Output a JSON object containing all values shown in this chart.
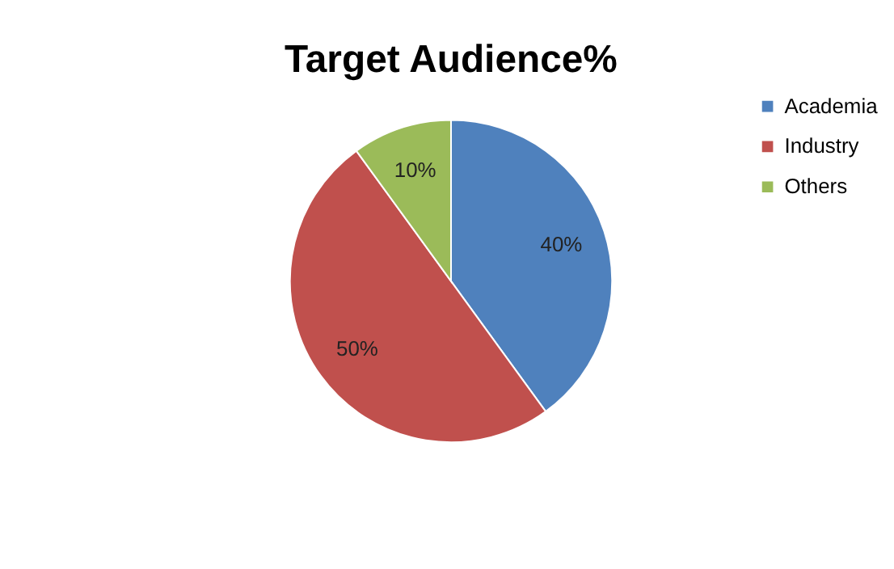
{
  "chart_data": {
    "type": "pie",
    "title": "Target Audience%",
    "categories": [
      "Academia",
      "Industry",
      "Others"
    ],
    "values": [
      40,
      50,
      10
    ],
    "colors": [
      "#4f81bd",
      "#c0504d",
      "#9bbb59"
    ],
    "value_labels": [
      "40%",
      "50%",
      "10%"
    ],
    "legend": "right"
  }
}
